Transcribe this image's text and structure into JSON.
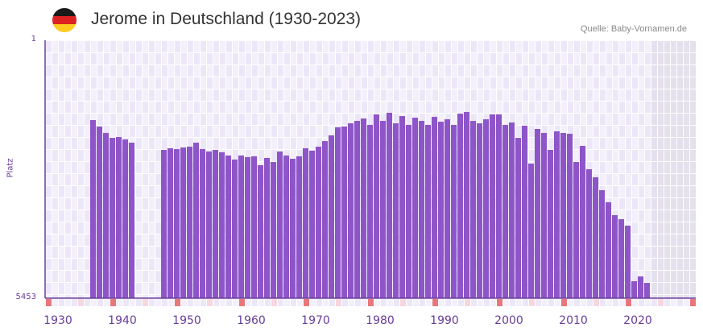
{
  "header": {
    "title": "Jerome in Deutschland (1930-2023)",
    "source": "Quelle: Baby-Vornamen.de",
    "flag_icon": "germany-flag-icon"
  },
  "colors": {
    "bar": "#8e55c8",
    "axis": "#6a3d9a",
    "decade_marker": "#e8777c",
    "half_decade_marker": "#f6d7df",
    "grid_a": "#f3f0fb",
    "grid_b": "#ece7f8",
    "future": "#e4e0ec"
  },
  "chart_data": {
    "type": "bar",
    "title": "Jerome in Deutschland (1930-2023)",
    "xlabel": "",
    "ylabel": "Platz",
    "ylim": [
      1,
      5453
    ],
    "y_inverted": true,
    "y_tick_labels": [
      "1",
      "5453"
    ],
    "xlim": [
      1930,
      2030
    ],
    "x_tick_labels": [
      "1930",
      "1940",
      "1950",
      "1960",
      "1970",
      "1980",
      "1990",
      "2000",
      "2010",
      "2020"
    ],
    "x_ticks": [
      1930,
      1940,
      1950,
      1960,
      1970,
      1980,
      1990,
      2000,
      2010,
      2020
    ],
    "years": [
      1937,
      1938,
      1939,
      1940,
      1941,
      1942,
      1943,
      1948,
      1949,
      1950,
      1951,
      1952,
      1953,
      1954,
      1955,
      1956,
      1957,
      1958,
      1959,
      1960,
      1961,
      1962,
      1963,
      1964,
      1965,
      1966,
      1967,
      1968,
      1969,
      1970,
      1971,
      1972,
      1973,
      1974,
      1975,
      1976,
      1977,
      1978,
      1979,
      1980,
      1981,
      1982,
      1983,
      1984,
      1985,
      1986,
      1987,
      1988,
      1989,
      1990,
      1991,
      1992,
      1993,
      1994,
      1995,
      1996,
      1997,
      1998,
      1999,
      2000,
      2001,
      2002,
      2003,
      2004,
      2005,
      2006,
      2007,
      2008,
      2009,
      2010,
      2011,
      2012,
      2013,
      2014,
      2015,
      2016,
      2017,
      2018,
      2019,
      2020,
      2021,
      2022,
      2023
    ],
    "ranks": [
      1688,
      1824,
      1960,
      2063,
      2046,
      2097,
      2165,
      2318,
      2284,
      2301,
      2267,
      2250,
      2165,
      2301,
      2352,
      2318,
      2369,
      2437,
      2523,
      2437,
      2471,
      2454,
      2642,
      2488,
      2574,
      2352,
      2437,
      2506,
      2454,
      2284,
      2335,
      2250,
      2131,
      2011,
      1841,
      1824,
      1756,
      1705,
      1654,
      1790,
      1568,
      1705,
      1534,
      1756,
      1603,
      1790,
      1637,
      1705,
      1790,
      1620,
      1722,
      1671,
      1790,
      1551,
      1517,
      1705,
      1756,
      1671,
      1568,
      1568,
      1790,
      1739,
      2063,
      1807,
      2608,
      1875,
      1960,
      2318,
      1926,
      1960,
      1977,
      2574,
      2233,
      2727,
      2897,
      3170,
      3426,
      3698,
      3783,
      3920,
      5095,
      4993,
      5129
    ],
    "data_end_year": 2023,
    "grid": true,
    "legend": "none"
  }
}
